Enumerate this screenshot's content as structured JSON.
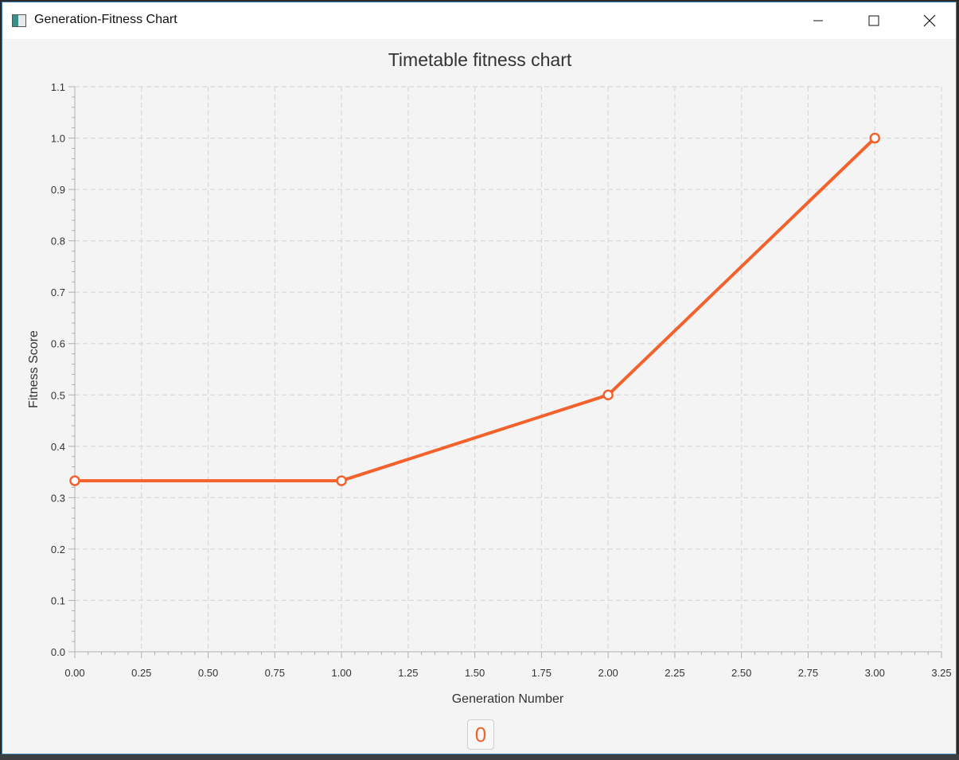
{
  "window": {
    "title": "Generation-Fitness Chart",
    "footer_value": "0"
  },
  "colors": {
    "series": "#f3622d",
    "grid": "#d8d8d8",
    "axis": "#b0b0b0",
    "text": "#333333"
  },
  "chart_data": {
    "type": "line",
    "title": "Timetable fitness chart",
    "xlabel": "Generation Number",
    "ylabel": "Fitness Score",
    "xlim": [
      0,
      3.25
    ],
    "ylim": [
      0,
      1.1
    ],
    "x_ticks": [
      "0.00",
      "0.25",
      "0.50",
      "0.75",
      "1.00",
      "1.25",
      "1.50",
      "1.75",
      "2.00",
      "2.25",
      "2.50",
      "2.75",
      "3.00",
      "3.25"
    ],
    "y_ticks": [
      "0.0",
      "0.1",
      "0.2",
      "0.3",
      "0.4",
      "0.5",
      "0.6",
      "0.7",
      "0.8",
      "0.9",
      "1.0",
      "1.1"
    ],
    "grid": true,
    "series": [
      {
        "x": [
          0,
          1,
          2,
          3
        ],
        "values": [
          0.333,
          0.333,
          0.5,
          1.0
        ]
      }
    ]
  }
}
